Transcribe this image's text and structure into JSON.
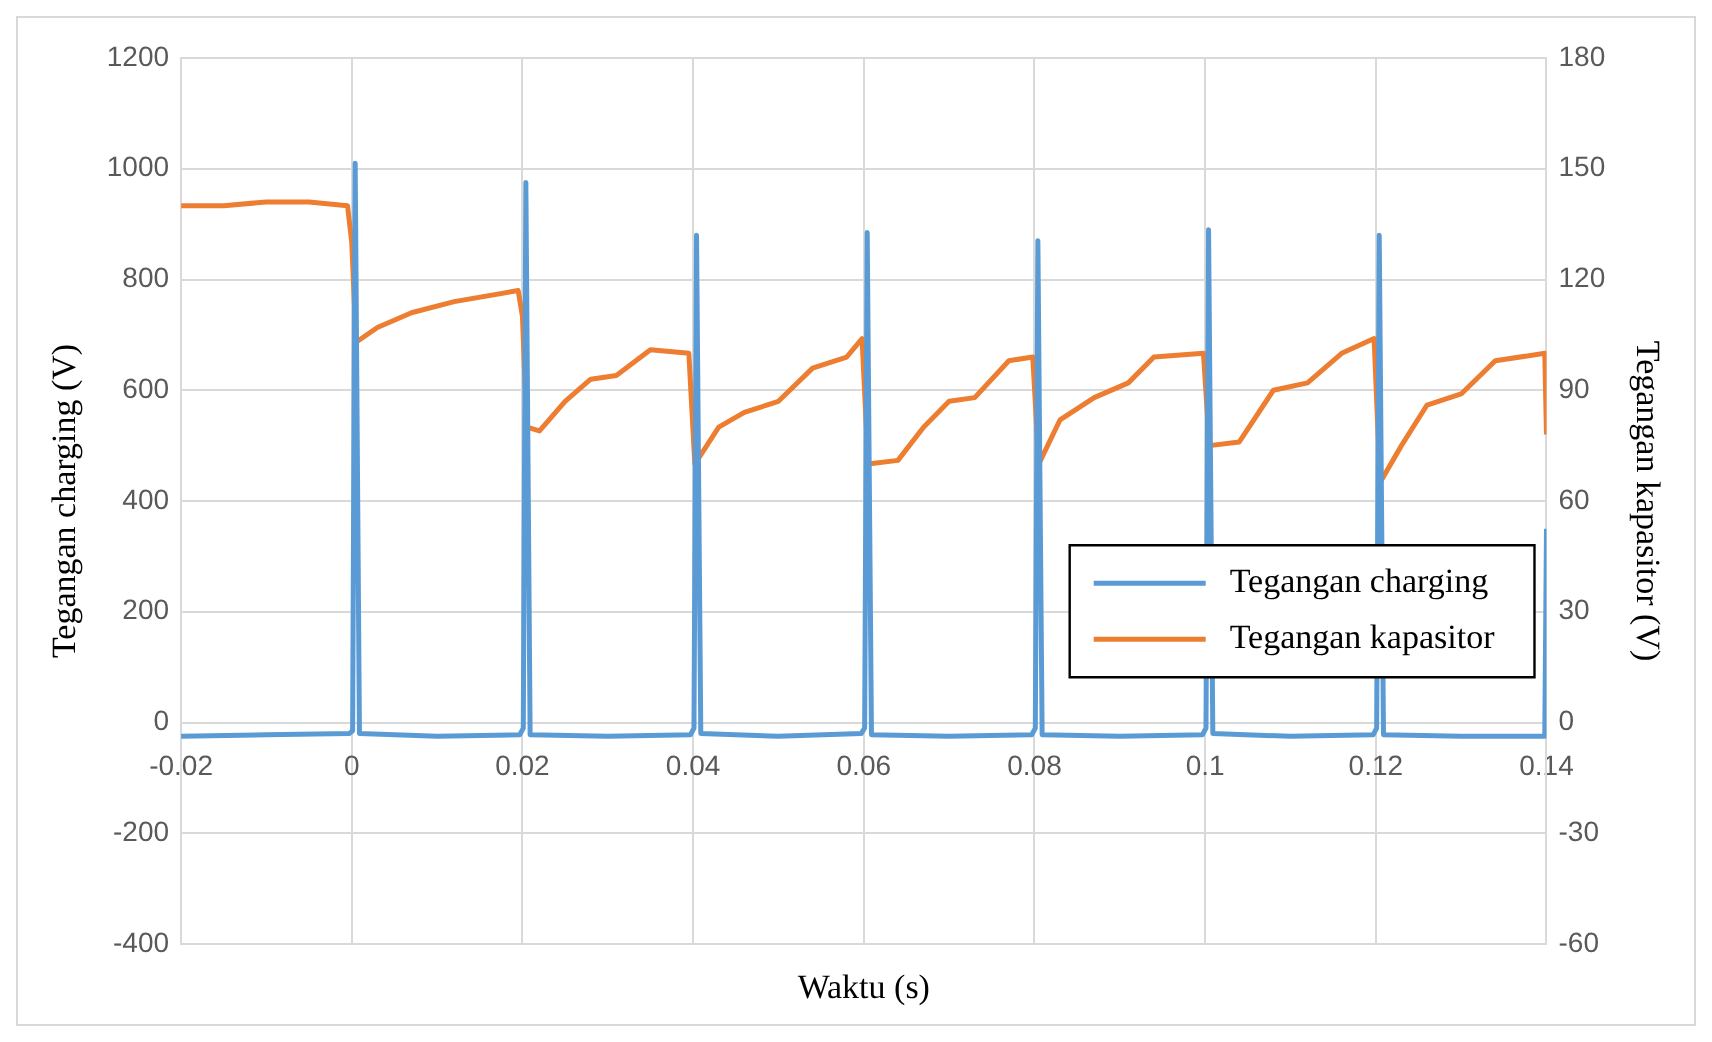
{
  "chart_data": {
    "type": "line",
    "xlabel": "Waktu (s)",
    "ylabel": "Tegangan charging (V)",
    "y2label": "Tegangan kapasitor (V)",
    "xlim": [
      -0.02,
      0.14
    ],
    "xticks": [
      -0.02,
      0,
      0.02,
      0.04,
      0.06,
      0.08,
      0.1,
      0.12,
      0.14
    ],
    "ylim": [
      -400,
      1200
    ],
    "yticks": [
      -400,
      -200,
      0,
      200,
      400,
      600,
      800,
      1000,
      1200
    ],
    "y2lim": [
      -60,
      180
    ],
    "y2ticks": [
      -60,
      -30,
      0,
      30,
      60,
      90,
      120,
      150,
      180
    ],
    "grid": true,
    "legend": "right",
    "marker": "none",
    "line_style": "solid",
    "series": [
      {
        "name": "Tegangan charging",
        "color": "#5b9bd5",
        "x": [
          -0.02,
          -0.01,
          -0.0003,
          0.0001,
          0.0004,
          0.0009,
          0.01,
          0.0197,
          0.0201,
          0.0204,
          0.0209,
          0.03,
          0.0397,
          0.0401,
          0.0404,
          0.0409,
          0.05,
          0.0597,
          0.0601,
          0.0604,
          0.0609,
          0.07,
          0.0797,
          0.0801,
          0.0804,
          0.0809,
          0.09,
          0.0997,
          0.1001,
          0.1004,
          0.1009,
          0.11,
          0.1197,
          0.1201,
          0.1204,
          0.1209,
          0.13,
          0.1398,
          0.14
        ],
        "values": [
          -25,
          -22,
          -20,
          -15,
          1010,
          -20,
          -25,
          -22,
          -10,
          975,
          -22,
          -25,
          -22,
          -10,
          880,
          -20,
          -25,
          -20,
          -10,
          885,
          -22,
          -25,
          -22,
          -10,
          870,
          -22,
          -25,
          -22,
          -10,
          890,
          -20,
          -25,
          -22,
          -10,
          880,
          -22,
          -25,
          -25,
          350
        ]
      },
      {
        "name": "Tegangan kapasitor",
        "color": "#ed7d31",
        "axis": "y2",
        "x": [
          -0.02,
          -0.015,
          -0.01,
          -0.005,
          -0.0005,
          0,
          0.0005,
          0.003,
          0.007,
          0.012,
          0.0195,
          0.02,
          0.0205,
          0.022,
          0.025,
          0.028,
          0.031,
          0.035,
          0.0395,
          0.0402,
          0.043,
          0.046,
          0.05,
          0.054,
          0.058,
          0.0598,
          0.0605,
          0.064,
          0.067,
          0.07,
          0.073,
          0.077,
          0.0798,
          0.0805,
          0.083,
          0.087,
          0.091,
          0.094,
          0.0998,
          0.1005,
          0.104,
          0.108,
          0.112,
          0.116,
          0.1198,
          0.1205,
          0.123,
          0.126,
          0.13,
          0.134,
          0.1398,
          0.14
        ],
        "values": [
          140,
          140,
          141,
          141,
          140,
          130,
          103,
          107,
          111,
          114,
          117,
          110,
          80,
          79,
          87,
          93,
          94,
          101,
          100,
          70,
          80,
          84,
          87,
          96,
          99,
          104,
          70,
          71,
          80,
          87,
          88,
          98,
          99,
          70,
          82,
          88,
          92,
          99,
          100,
          75,
          76,
          90,
          92,
          100,
          104,
          65,
          75,
          86,
          89,
          98,
          100,
          78
        ]
      }
    ]
  }
}
